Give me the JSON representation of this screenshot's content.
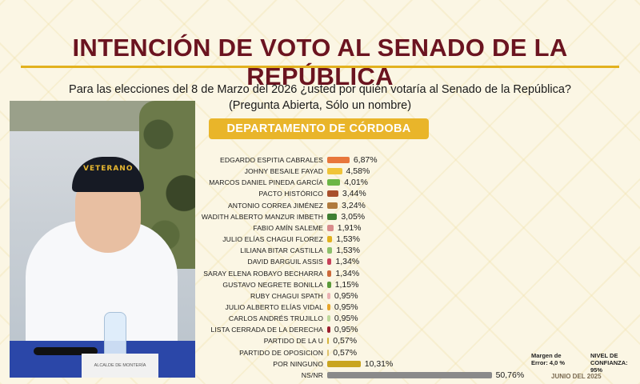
{
  "title": "INTENCIÓN DE VOTO AL SENADO DE LA REPÚBLICA",
  "question_line1": "Para las elecciones del 8 de Marzo del 2026 ¿usted por quién votaría al Senado de la República?",
  "question_line2": "(Pregunta Abierta, Sólo un nombre)",
  "department": "DEPARTAMENTO DE CÓRDOBA",
  "photo": {
    "cap_text": "VETERANO",
    "nameplate": "ALCALDE DE MONTERÍA"
  },
  "notes": {
    "margin_line1": "Margen de",
    "margin_line2": "Error: 4,0 %",
    "confidence_line1": "NIVEL DE",
    "confidence_line2": "CONFIANZA: 95%",
    "date": "JUNIO DEL 2025"
  },
  "chart_data": {
    "type": "bar",
    "orientation": "horizontal",
    "title": "INTENCIÓN DE VOTO AL SENADO DE LA REPÚBLICA",
    "subtitle": "DEPARTAMENTO DE CÓRDOBA",
    "categories": [
      "EDGARDO ESPITIA CABRALES",
      "JOHNY BESAILE FAYAD",
      "MARCOS DANIEL PINEDA GARCÍA",
      "PACTO HISTÓRICO",
      "ANTONIO CORREA JIMÉNEZ",
      "WADITH ALBERTO MANZUR IMBETH",
      "FABIO AMÍN SALEME",
      "JULIO ELÍAS CHAGUI FLOREZ",
      "LILIANA BITAR CASTILLA",
      "DAVID BARGUIL ASSIS",
      "SARAY ELENA ROBAYO BECHARRA",
      "GUSTAVO NEGRETE BONILLA",
      "RUBY CHAGUI SPATH",
      "JULIO ALBERTO ELÍAS VIDAL",
      "CARLOS ANDRÉS TRUJILLO",
      "LISTA CERRADA DE LA DERECHA",
      "PARTIDO DE LA U",
      "PARTIDO DE OPOSICION",
      "POR NINGUNO",
      "NS/NR"
    ],
    "values": [
      6.87,
      4.58,
      4.01,
      3.44,
      3.24,
      3.05,
      1.91,
      1.53,
      1.53,
      1.34,
      1.34,
      1.15,
      0.95,
      0.95,
      0.95,
      0.95,
      0.57,
      0.57,
      10.31,
      50.76
    ],
    "value_labels": [
      "6,87%",
      "4,58%",
      "4,01%",
      "3,44%",
      "3,24%",
      "3,05%",
      "1,91%",
      "1,53%",
      "1,53%",
      "1,34%",
      "1,34%",
      "1,15%",
      "0,95%",
      "0,95%",
      "0,95%",
      "0,95%",
      "0,57%",
      "0,57%",
      "10,31%",
      "50,76%"
    ],
    "colors": [
      "#e8773c",
      "#f0c438",
      "#6cb646",
      "#a9502c",
      "#b07a3c",
      "#3f7f32",
      "#d98b8b",
      "#e2b11e",
      "#8dc06b",
      "#c8425a",
      "#cc6a3a",
      "#5a9a3a",
      "#e9b1b1",
      "#e7a52a",
      "#bdd99a",
      "#9b1e2e",
      "#d4b23a",
      "#e0c26a",
      "#c9a520",
      "#8a8a8a"
    ],
    "xlabel": "",
    "ylabel": "",
    "grid": false,
    "legend": "none"
  }
}
